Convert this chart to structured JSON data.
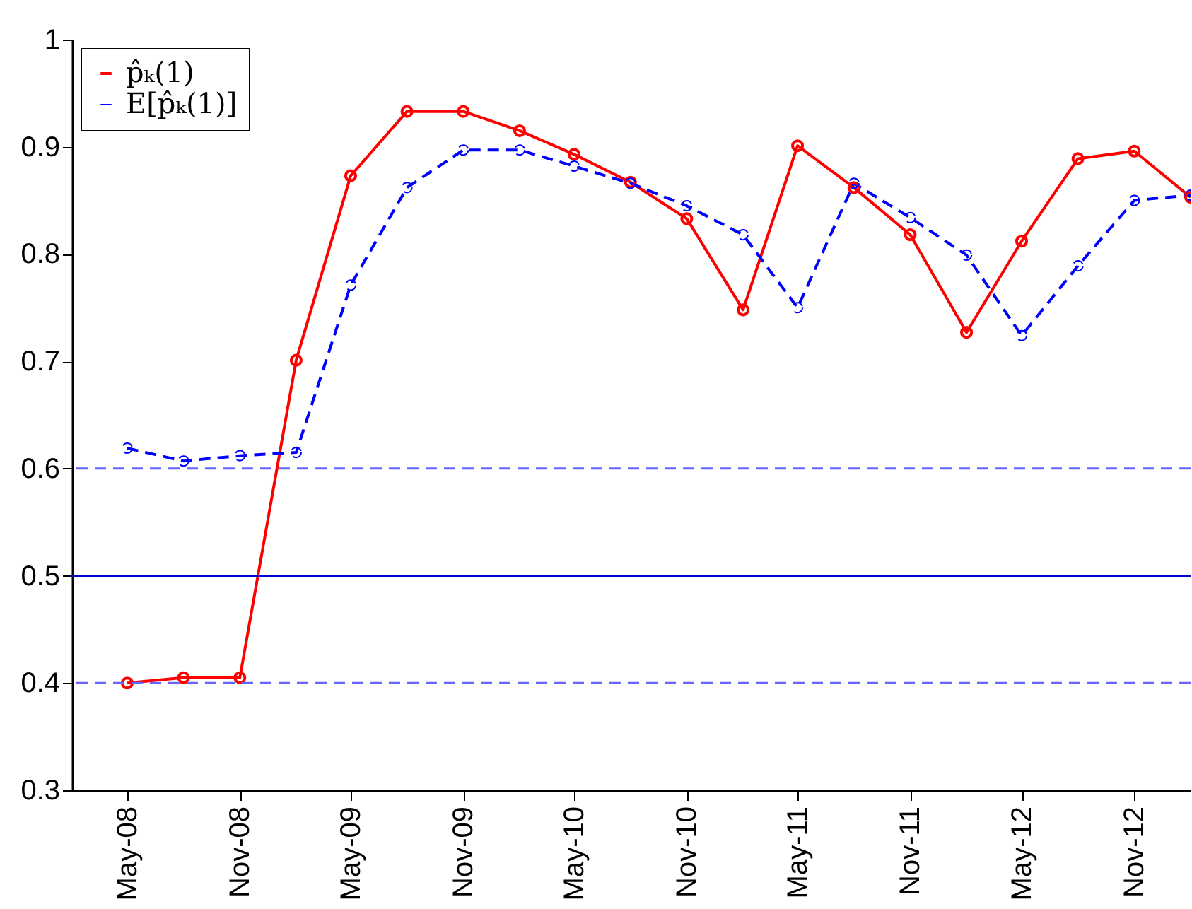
{
  "chart_data": {
    "type": "line",
    "x": [
      "2008-05",
      "2008-08",
      "2008-11",
      "2009-02",
      "2009-05",
      "2009-08",
      "2009-11",
      "2010-02",
      "2010-05",
      "2010-08",
      "2010-11",
      "2011-02",
      "2011-05",
      "2011-08",
      "2011-11",
      "2012-02",
      "2012-05",
      "2012-08",
      "2012-11",
      "2013-02"
    ],
    "series": [
      {
        "name": "p̂ₖ(1)",
        "color": "#ff0000",
        "line_style": "solid",
        "values": [
          0.4,
          0.405,
          0.405,
          0.701,
          0.873,
          0.933,
          0.933,
          0.915,
          0.893,
          0.867,
          0.833,
          0.748,
          0.901,
          0.862,
          0.818,
          0.727,
          0.812,
          0.889,
          0.896,
          0.853
        ]
      },
      {
        "name": "E[p̂ₖ(1)]",
        "color": "#0000ff",
        "line_style": "dashed",
        "values": [
          0.619,
          0.607,
          0.612,
          0.615,
          0.771,
          0.862,
          0.897,
          0.897,
          0.882,
          0.866,
          0.845,
          0.818,
          0.75,
          0.866,
          0.834,
          0.799,
          0.724,
          0.789,
          0.85,
          0.855
        ]
      }
    ],
    "xlim": [
      "2008-02",
      "2013-02"
    ],
    "xticks": [
      {
        "value": "2008-05",
        "label": "May-08"
      },
      {
        "value": "2008-11",
        "label": "Nov-08"
      },
      {
        "value": "2009-05",
        "label": "May-09"
      },
      {
        "value": "2009-11",
        "label": "Nov-09"
      },
      {
        "value": "2010-05",
        "label": "May-10"
      },
      {
        "value": "2010-11",
        "label": "Nov-10"
      },
      {
        "value": "2011-05",
        "label": "May-11"
      },
      {
        "value": "2011-11",
        "label": "Nov-11"
      },
      {
        "value": "2012-05",
        "label": "May-12"
      },
      {
        "value": "2012-11",
        "label": "Nov-12"
      }
    ],
    "ylim": [
      0.3,
      1
    ],
    "yticks": [
      0.3,
      0.4,
      0.5,
      0.6,
      0.7,
      0.8,
      0.9,
      1
    ],
    "ref_lines": [
      {
        "axis": "y",
        "value": 0.6,
        "color": "#6666ff",
        "line_style": "dashed"
      },
      {
        "axis": "y",
        "value": 0.5,
        "color": "#0000cc",
        "line_style": "solid"
      },
      {
        "axis": "y",
        "value": 0.4,
        "color": "#6666ff",
        "line_style": "dashed"
      }
    ],
    "marker": "circle",
    "legend": "top left",
    "grid": false
  }
}
